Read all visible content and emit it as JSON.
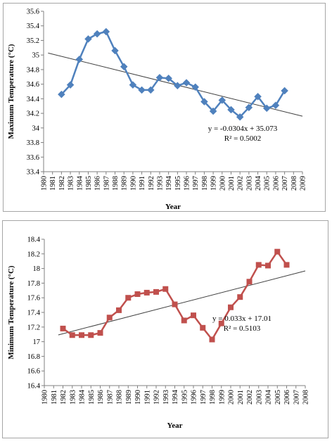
{
  "chart_data": [
    {
      "type": "line",
      "x_ticks": [
        1980,
        1981,
        1982,
        1983,
        1984,
        1985,
        1986,
        1987,
        1988,
        1989,
        1990,
        1991,
        1992,
        1993,
        1994,
        1995,
        1996,
        1997,
        1998,
        1999,
        2000,
        2001,
        2002,
        2003,
        2004,
        2005,
        2006,
        2007,
        2008,
        2009
      ],
      "ylim": [
        33.4,
        35.6
      ],
      "y_ticks": [
        "33.4",
        "33.6",
        "33.8",
        "34",
        "34.2",
        "34.4",
        "34.6",
        "34.8",
        "35",
        "35.2",
        "35.4",
        "35.6"
      ],
      "xlabel": "Year",
      "ylabel": "Maximum Temperature (°C)",
      "series": [
        {
          "x": [
            1982,
            1983,
            1984,
            1985,
            1986,
            1987,
            1988,
            1989,
            1990,
            1991,
            1992,
            1993,
            1994,
            1995,
            1996,
            1997,
            1998,
            1999,
            2000,
            2001,
            2002,
            2003,
            2004,
            2005,
            2006,
            2007
          ],
          "values": [
            34.46,
            34.59,
            34.94,
            35.22,
            35.29,
            35.32,
            35.06,
            34.84,
            34.59,
            34.52,
            34.52,
            34.69,
            34.68,
            34.58,
            34.62,
            34.56,
            34.36,
            34.23,
            34.38,
            34.25,
            34.15,
            34.28,
            34.43,
            34.27,
            34.31,
            34.51
          ],
          "color": "#4f81bd",
          "marker": "diamond"
        }
      ],
      "trendline": {
        "equation": "y = -0.0304x + 35.073",
        "r2": "R² = 0.5002",
        "slope": -0.0304,
        "intercept": 35.073,
        "color": "#404040"
      },
      "grid": false
    },
    {
      "type": "line",
      "x_ticks": [
        1980,
        1981,
        1982,
        1983,
        1984,
        1985,
        1986,
        1987,
        1988,
        1989,
        1990,
        1991,
        1992,
        1993,
        1994,
        1995,
        1996,
        1997,
        1998,
        1999,
        2000,
        2001,
        2002,
        2003,
        2004,
        2005,
        2006,
        2007,
        2008
      ],
      "ylim": [
        16.4,
        18.4
      ],
      "y_ticks": [
        "16.4",
        "16.6",
        "16.8",
        "17",
        "17.2",
        "17.4",
        "17.6",
        "17.8",
        "18",
        "18.2",
        "18.4"
      ],
      "xlabel": "Year",
      "ylabel": "Minimum Temperature (°C)",
      "series": [
        {
          "x": [
            1982,
            1983,
            1984,
            1985,
            1986,
            1987,
            1988,
            1989,
            1990,
            1991,
            1992,
            1993,
            1994,
            1995,
            1996,
            1997,
            1998,
            1999,
            2000,
            2001,
            2002,
            2003,
            2004,
            2005,
            2006
          ],
          "values": [
            17.18,
            17.09,
            17.09,
            17.09,
            17.12,
            17.33,
            17.43,
            17.6,
            17.65,
            17.67,
            17.68,
            17.72,
            17.51,
            17.29,
            17.36,
            17.19,
            17.03,
            17.25,
            17.47,
            17.61,
            17.82,
            18.05,
            18.04,
            18.23,
            18.05
          ],
          "color": "#c0504d",
          "marker": "square"
        }
      ],
      "trendline": {
        "equation": "y = 0.033x + 17.01",
        "r2": "R² = 0.5103",
        "slope": 0.033,
        "intercept": 17.01,
        "color": "#404040"
      },
      "grid": false
    }
  ]
}
